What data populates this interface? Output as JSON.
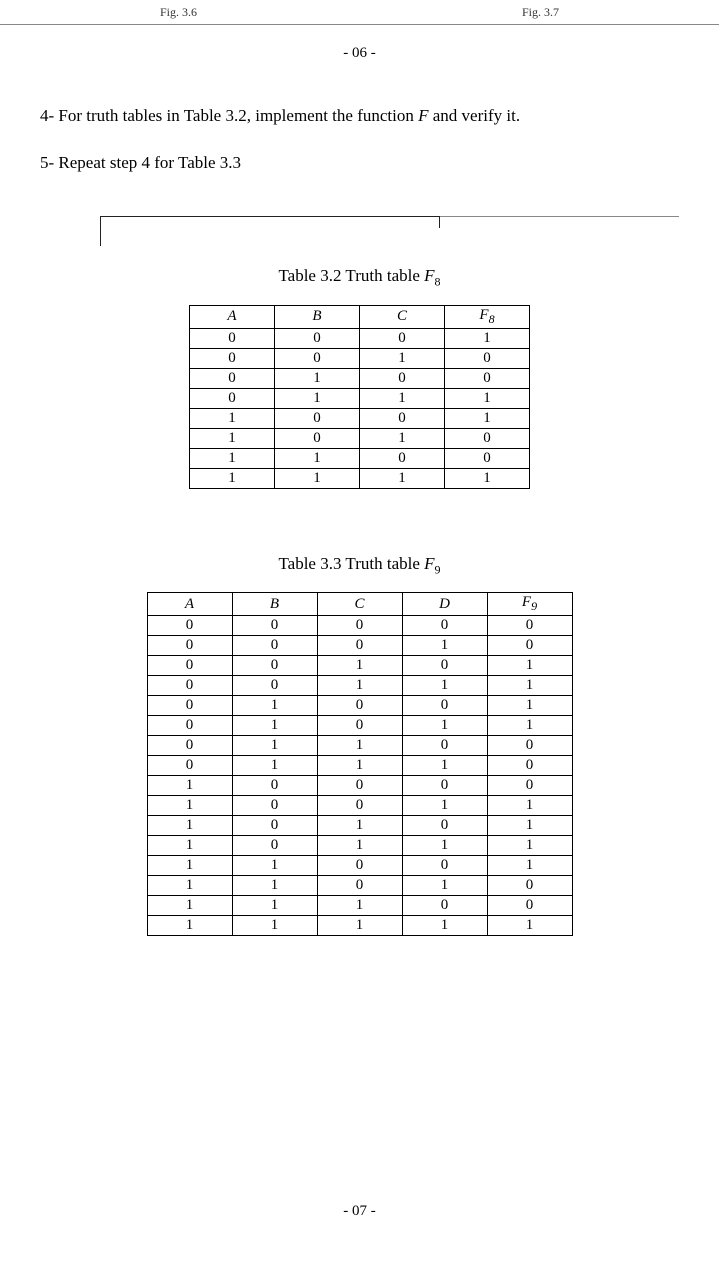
{
  "top_fragments": {
    "left": "Fig. 3.6",
    "right": "Fig. 3.7"
  },
  "page_num_top": "- 06 -",
  "instr4": {
    "num": "4-",
    "text_before": " For truth tables in Table 3.2, implement the function ",
    "func": "F",
    "text_after": " and verify it."
  },
  "instr5": "5- Repeat step 4 for Table 3.3",
  "table1": {
    "caption_before": "Table 3.2 Truth table ",
    "caption_var": "F",
    "caption_sub": "8",
    "columns": [
      "A",
      "B",
      "C",
      "F₈"
    ],
    "col_headers": [
      {
        "label": "A",
        "sub": ""
      },
      {
        "label": "B",
        "sub": ""
      },
      {
        "label": "C",
        "sub": ""
      },
      {
        "label": "F",
        "sub": "8"
      }
    ],
    "rows": [
      [
        "0",
        "0",
        "0",
        "1"
      ],
      [
        "0",
        "0",
        "1",
        "0"
      ],
      [
        "0",
        "1",
        "0",
        "0"
      ],
      [
        "0",
        "1",
        "1",
        "1"
      ],
      [
        "1",
        "0",
        "0",
        "1"
      ],
      [
        "1",
        "0",
        "1",
        "0"
      ],
      [
        "1",
        "1",
        "0",
        "0"
      ],
      [
        "1",
        "1",
        "1",
        "1"
      ]
    ]
  },
  "table2": {
    "caption_before": "Table 3.3 Truth table ",
    "caption_var": "F",
    "caption_sub": "9",
    "col_headers": [
      {
        "label": "A",
        "sub": ""
      },
      {
        "label": "B",
        "sub": ""
      },
      {
        "label": "C",
        "sub": ""
      },
      {
        "label": "D",
        "sub": ""
      },
      {
        "label": "F",
        "sub": "9"
      }
    ],
    "rows": [
      [
        "0",
        "0",
        "0",
        "0",
        "0"
      ],
      [
        "0",
        "0",
        "0",
        "1",
        "0"
      ],
      [
        "0",
        "0",
        "1",
        "0",
        "1"
      ],
      [
        "0",
        "0",
        "1",
        "1",
        "1"
      ],
      [
        "0",
        "1",
        "0",
        "0",
        "1"
      ],
      [
        "0",
        "1",
        "0",
        "1",
        "1"
      ],
      [
        "0",
        "1",
        "1",
        "0",
        "0"
      ],
      [
        "0",
        "1",
        "1",
        "1",
        "0"
      ],
      [
        "1",
        "0",
        "0",
        "0",
        "0"
      ],
      [
        "1",
        "0",
        "0",
        "1",
        "1"
      ],
      [
        "1",
        "0",
        "1",
        "0",
        "1"
      ],
      [
        "1",
        "0",
        "1",
        "1",
        "1"
      ],
      [
        "1",
        "1",
        "0",
        "0",
        "1"
      ],
      [
        "1",
        "1",
        "0",
        "1",
        "0"
      ],
      [
        "1",
        "1",
        "1",
        "0",
        "0"
      ],
      [
        "1",
        "1",
        "1",
        "1",
        "1"
      ]
    ]
  },
  "page_num_bottom": "- 07 -",
  "styling": {
    "page_bg": "#ffffff",
    "text_color": "#000000",
    "border_color": "#000000",
    "font_family": "Times New Roman",
    "caption_fontsize": 17,
    "cell_fontsize": 15,
    "instruction_fontsize": 17,
    "t1_col_width": 85,
    "t2_col_width": 85
  }
}
